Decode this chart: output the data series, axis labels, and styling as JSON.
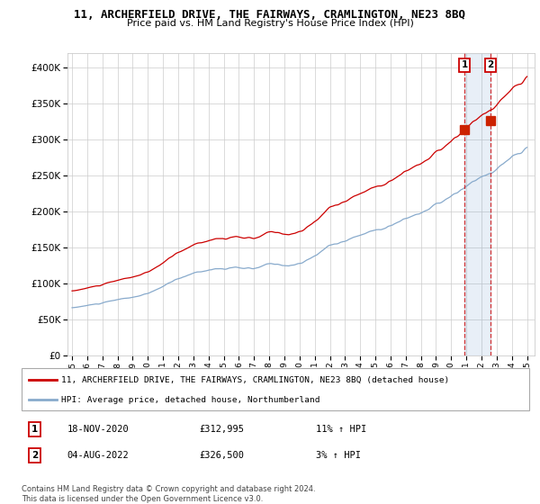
{
  "title": "11, ARCHERFIELD DRIVE, THE FAIRWAYS, CRAMLINGTON, NE23 8BQ",
  "subtitle": "Price paid vs. HM Land Registry's House Price Index (HPI)",
  "legend_line1": "11, ARCHERFIELD DRIVE, THE FAIRWAYS, CRAMLINGTON, NE23 8BQ (detached house)",
  "legend_line2": "HPI: Average price, detached house, Northumberland",
  "annotation1_date": "18-NOV-2020",
  "annotation1_price": "£312,995",
  "annotation1_hpi": "11% ↑ HPI",
  "annotation2_date": "04-AUG-2022",
  "annotation2_price": "£326,500",
  "annotation2_hpi": "3% ↑ HPI",
  "copyright": "Contains HM Land Registry data © Crown copyright and database right 2024.\nThis data is licensed under the Open Government Licence v3.0.",
  "red_color": "#cc0000",
  "blue_color": "#88aacc",
  "shade_color": "#ddeeff",
  "grid_color": "#cccccc",
  "background_color": "#ffffff",
  "ylim": [
    0,
    420000
  ],
  "yticks": [
    0,
    50000,
    100000,
    150000,
    200000,
    250000,
    300000,
    350000,
    400000
  ],
  "sale1_x": 2020.88,
  "sale1_y": 312995,
  "sale2_x": 2022.58,
  "sale2_y": 326500,
  "xtick_years": [
    1995,
    1996,
    1997,
    1998,
    1999,
    2000,
    2001,
    2002,
    2003,
    2004,
    2005,
    2006,
    2007,
    2008,
    2009,
    2010,
    2011,
    2012,
    2013,
    2014,
    2015,
    2016,
    2017,
    2018,
    2019,
    2020,
    2021,
    2022,
    2023,
    2024,
    2025
  ]
}
